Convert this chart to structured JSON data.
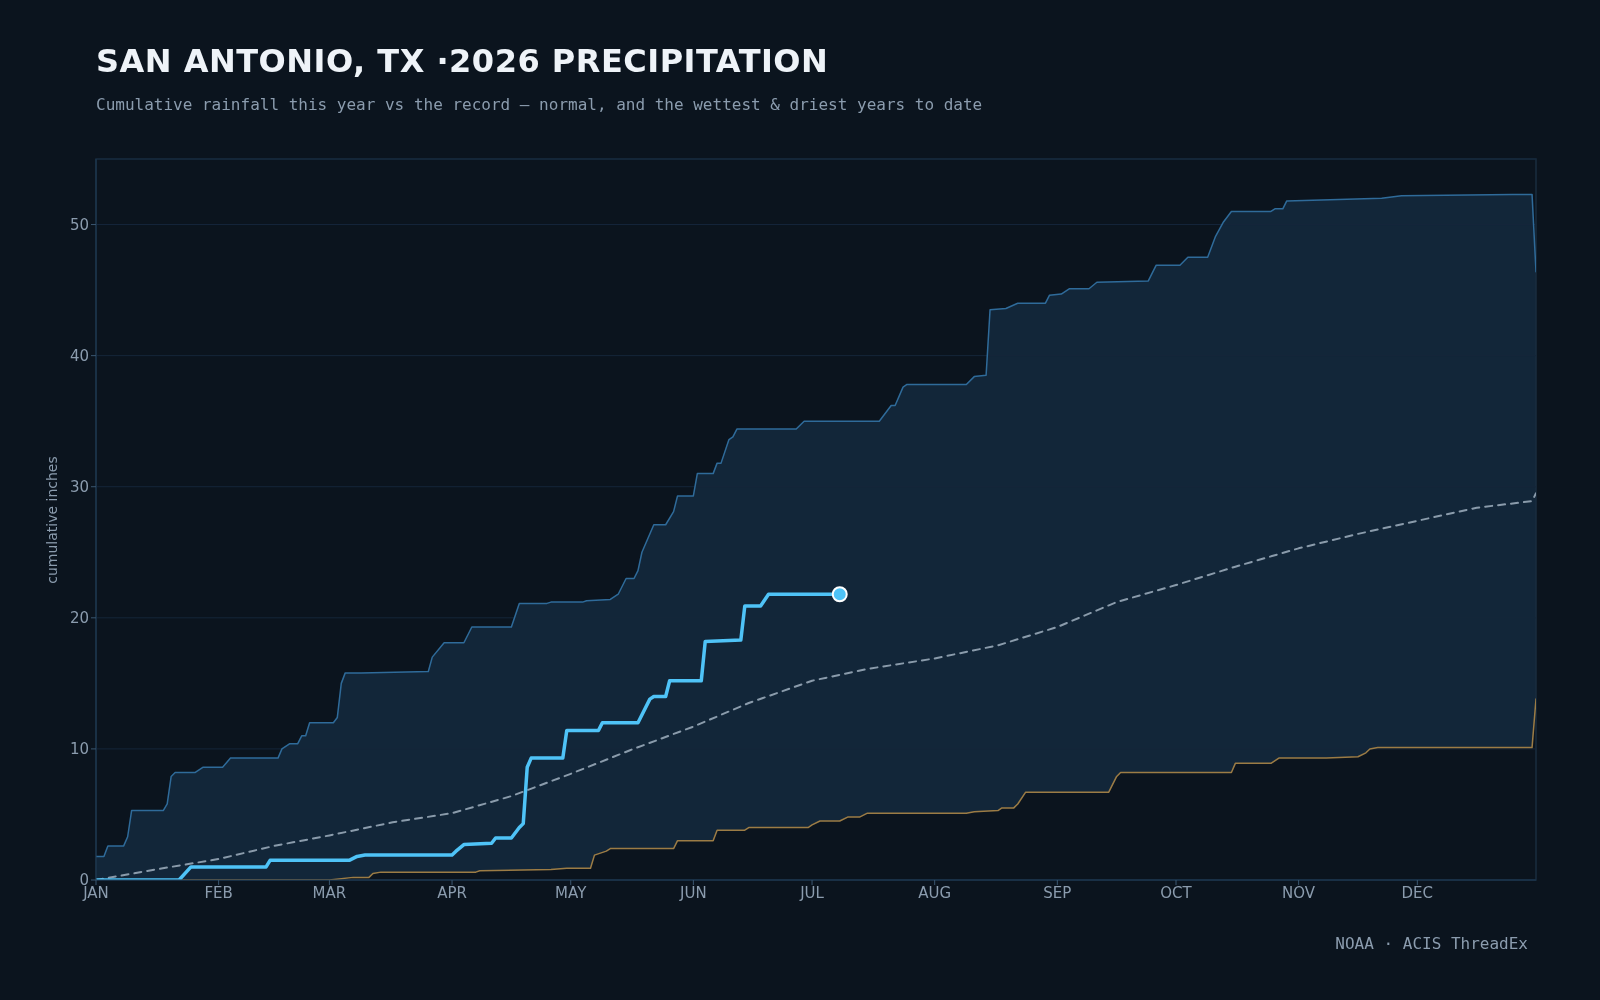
{
  "chart_data": {
    "type": "line",
    "title": "SAN ANTONIO, TX ·2026 PRECIPITATION",
    "subtitle": "Cumulative rainfall this year vs the record — normal, and the wettest & driest years to date",
    "ylabel": "cumulative inches",
    "annotations": [
      "NOAA · ACIS ThreadEx"
    ],
    "xlim": [
      "--01-01",
      "--12-31"
    ],
    "xticks": [
      {
        "value": "--01-01",
        "label": "JAN"
      },
      {
        "value": "--02-01",
        "label": "FEB"
      },
      {
        "value": "--03-01",
        "label": "MAR"
      },
      {
        "value": "--04-01",
        "label": "APR"
      },
      {
        "value": "--05-01",
        "label": "MAY"
      },
      {
        "value": "--06-01",
        "label": "JUN"
      },
      {
        "value": "--07-01",
        "label": "JUL"
      },
      {
        "value": "--08-01",
        "label": "AUG"
      },
      {
        "value": "--09-01",
        "label": "SEP"
      },
      {
        "value": "--10-01",
        "label": "OCT"
      },
      {
        "value": "--11-01",
        "label": "NOV"
      },
      {
        "value": "--12-01",
        "label": "DEC"
      }
    ],
    "ylim": [
      0,
      55
    ],
    "yticks": [
      0,
      10,
      20,
      30,
      40,
      50
    ],
    "grid": "y",
    "series": [
      {
        "type": "area",
        "color": "#2f6b9a",
        "x": [
          "--01-01",
          "--01-03",
          "--01-04",
          "--01-08",
          "--01-09",
          "--01-10",
          "--01-18",
          "--01-19",
          "--01-20",
          "--01-21",
          "--01-26",
          "--01-28",
          "--02-02",
          "--02-04",
          "--02-16",
          "--02-17",
          "--02-19",
          "--02-21",
          "--02-22",
          "--02-23",
          "--02-24",
          "--03-02",
          "--03-03",
          "--03-04",
          "--03-05",
          "--03-09",
          "--03-26",
          "--03-27",
          "--03-30",
          "--04-04",
          "--04-06",
          "--04-16",
          "--04-18",
          "--04-25",
          "--04-26",
          "--05-04",
          "--05-05",
          "--05-11",
          "--05-13",
          "--05-15",
          "--05-17",
          "--05-18",
          "--05-19",
          "--05-22",
          "--05-25",
          "--05-27",
          "--05-28",
          "--06-01",
          "--06-02",
          "--06-06",
          "--06-07",
          "--06-08",
          "--06-10",
          "--06-11",
          "--06-12",
          "--06-27",
          "--06-29",
          "--07-18",
          "--07-19",
          "--07-21",
          "--07-22",
          "--07-24",
          "--07-25",
          "--08-09",
          "--08-11",
          "--08-14",
          "--08-15",
          "--08-19",
          "--08-22",
          "--08-29",
          "--08-30",
          "--09-02",
          "--09-04",
          "--09-09",
          "--09-11",
          "--09-24",
          "--09-26",
          "--10-02",
          "--10-04",
          "--10-09",
          "--10-11",
          "--10-13",
          "--10-15",
          "--10-25",
          "--10-26",
          "--10-28",
          "--10-29",
          "--11-22",
          "--11-27",
          "--12-25",
          "--12-30",
          "--12-31"
        ],
        "values": [
          1.8,
          1.8,
          2.6,
          2.6,
          3.3,
          5.3,
          5.3,
          5.8,
          7.9,
          8.2,
          8.2,
          8.6,
          8.6,
          9.3,
          9.3,
          10.0,
          10.4,
          10.4,
          11.0,
          11.0,
          12.0,
          12.0,
          12.4,
          15.0,
          15.8,
          15.8,
          15.9,
          17.0,
          18.1,
          18.1,
          19.3,
          19.3,
          21.1,
          21.1,
          21.2,
          21.2,
          21.3,
          21.4,
          21.8,
          23.0,
          23.0,
          23.6,
          25.0,
          27.1,
          27.1,
          28.1,
          29.3,
          29.3,
          31.0,
          31.0,
          31.8,
          31.8,
          33.6,
          33.8,
          34.4,
          34.4,
          35.0,
          35.0,
          35.4,
          36.2,
          36.2,
          37.6,
          37.8,
          37.8,
          38.4,
          38.5,
          43.5,
          43.6,
          44.0,
          44.0,
          44.6,
          44.7,
          45.1,
          45.1,
          45.6,
          45.7,
          46.9,
          46.9,
          47.5,
          47.5,
          49.1,
          50.2,
          51.0,
          51.0,
          51.2,
          51.2,
          51.8,
          52.0,
          52.2,
          52.3,
          52.3,
          46.4
        ]
      },
      {
        "type": "area",
        "color": "#9c7c45",
        "x": [
          "--01-01",
          "--03-01",
          "--03-07",
          "--03-11",
          "--03-12",
          "--03-14",
          "--04-07",
          "--04-08",
          "--04-26",
          "--04-30",
          "--05-06",
          "--05-07",
          "--05-10",
          "--05-11",
          "--05-27",
          "--05-28",
          "--06-06",
          "--06-07",
          "--06-14",
          "--06-15",
          "--06-30",
          "--07-01",
          "--07-03",
          "--07-08",
          "--07-10",
          "--07-13",
          "--07-15",
          "--08-09",
          "--08-11",
          "--08-17",
          "--08-18",
          "--08-21",
          "--08-22",
          "--08-24",
          "--09-14",
          "--09-16",
          "--09-17",
          "--10-15",
          "--10-16",
          "--10-25",
          "--10-27",
          "--11-08",
          "--11-16",
          "--11-18",
          "--11-19",
          "--11-21",
          "--12-30",
          "--12-31"
        ],
        "values": [
          0,
          0,
          0.2,
          0.2,
          0.5,
          0.6,
          0.6,
          0.7,
          0.8,
          0.9,
          0.9,
          1.9,
          2.2,
          2.4,
          2.4,
          3.0,
          3.0,
          3.8,
          3.8,
          4.0,
          4.0,
          4.2,
          4.5,
          4.5,
          4.8,
          4.8,
          5.1,
          5.1,
          5.2,
          5.3,
          5.5,
          5.5,
          5.8,
          6.7,
          6.7,
          7.9,
          8.2,
          8.2,
          8.9,
          8.9,
          9.3,
          9.3,
          9.4,
          9.7,
          10.0,
          10.1,
          10.1,
          13.8
        ]
      },
      {
        "type": "line",
        "color": "#8a9bab",
        "line_style": "dashed",
        "x": [
          "--01-01",
          "--01-16",
          "--02-01",
          "--02-15",
          "--03-01",
          "--03-17",
          "--04-01",
          "--04-16",
          "--05-01",
          "--05-16",
          "--06-01",
          "--06-15",
          "--07-01",
          "--07-15",
          "--08-01",
          "--08-17",
          "--09-01",
          "--09-16",
          "--10-01",
          "--10-16",
          "--11-01",
          "--11-16",
          "--12-01",
          "--12-16",
          "--12-30",
          "--12-31"
        ],
        "values": [
          0,
          0.8,
          1.6,
          2.6,
          3.4,
          4.4,
          5.1,
          6.4,
          8.1,
          9.9,
          11.7,
          13.5,
          15.2,
          16.1,
          16.9,
          17.9,
          19.3,
          21.2,
          22.5,
          23.9,
          25.3,
          26.4,
          27.4,
          28.4,
          28.9,
          29.5
        ]
      },
      {
        "type": "line",
        "color": "#4fc3f7",
        "x": [
          "--01-01",
          "--01-22",
          "--01-25",
          "--02-13",
          "--02-14",
          "--03-06",
          "--03-08",
          "--03-10",
          "--04-01",
          "--04-02",
          "--04-04",
          "--04-11",
          "--04-12",
          "--04-16",
          "--04-18",
          "--04-19",
          "--04-20",
          "--04-21",
          "--04-29",
          "--04-30",
          "--05-08",
          "--05-09",
          "--05-18",
          "--05-21",
          "--05-22",
          "--05-25",
          "--05-26",
          "--06-03",
          "--06-04",
          "--06-13",
          "--06-14",
          "--06-18",
          "--06-20",
          "--07-08"
        ],
        "values": [
          0,
          0,
          1.0,
          1.0,
          1.5,
          1.5,
          1.8,
          1.9,
          1.9,
          2.2,
          2.7,
          2.8,
          3.2,
          3.2,
          4.0,
          4.3,
          8.6,
          9.3,
          9.3,
          11.4,
          11.4,
          12.0,
          12.0,
          13.8,
          14.0,
          14.0,
          15.2,
          15.2,
          18.2,
          18.3,
          20.9,
          20.9,
          21.8,
          21.8
        ]
      },
      {
        "type": "scatter",
        "color": "#4fc3f7",
        "marker": "circle",
        "x": [
          "--07-08"
        ],
        "values": [
          21.8
        ]
      }
    ]
  }
}
